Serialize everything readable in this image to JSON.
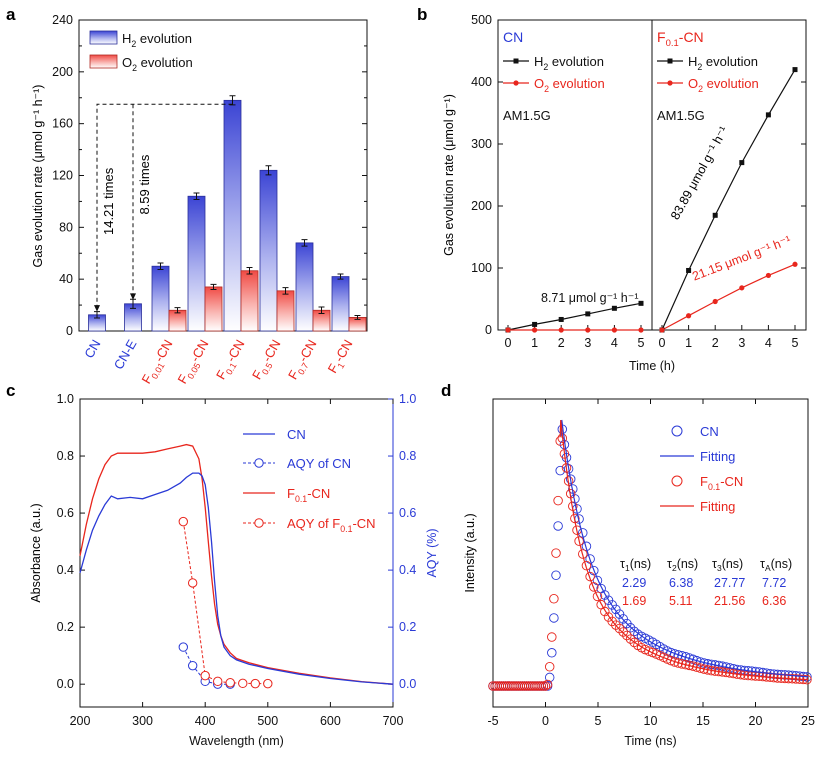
{
  "chart_data": [
    {
      "panel": "a",
      "type": "bar",
      "ylabel": "Gas evolution rate (μmol g⁻¹ h⁻¹)",
      "ylim": [
        0,
        240
      ],
      "yticks": [
        0,
        40,
        80,
        120,
        160,
        200,
        240
      ],
      "categories": [
        {
          "base": "CN",
          "sub": "",
          "suffix": "",
          "color": "#2a3ad6"
        },
        {
          "base": "CN-E",
          "sub": "",
          "suffix": "",
          "color": "#2a3ad6"
        },
        {
          "base": "F",
          "sub": "0.01",
          "suffix": "-CN",
          "color": "#e8261d"
        },
        {
          "base": "F",
          "sub": "0.05",
          "suffix": "-CN",
          "color": "#e8261d"
        },
        {
          "base": "F",
          "sub": "0.1",
          "suffix": "-CN",
          "color": "#e8261d"
        },
        {
          "base": "F",
          "sub": "0.5",
          "suffix": "-CN",
          "color": "#e8261d"
        },
        {
          "base": "F",
          "sub": "0.7",
          "suffix": "-CN",
          "color": "#e8261d"
        },
        {
          "base": "F",
          "sub": "1",
          "suffix": "-CN",
          "color": "#e8261d"
        }
      ],
      "series": [
        {
          "name": "H2 evolution",
          "values": [
            12.5,
            21,
            50,
            104,
            178,
            124,
            68,
            42
          ],
          "errors": [
            2.5,
            3.5,
            2.5,
            2.5,
            3.5,
            3.5,
            2.5,
            2
          ]
        },
        {
          "name": "O2 evolution",
          "values": [
            null,
            null,
            16,
            34,
            46.5,
            31,
            16,
            10.5
          ],
          "errors": [
            null,
            null,
            2,
            2,
            2.5,
            2.5,
            2.5,
            1.5
          ]
        }
      ],
      "legend": [
        {
          "base": "H",
          "sub": "2",
          "rest": " evolution"
        },
        {
          "base": "O",
          "sub": "2",
          "rest": " evolution"
        }
      ],
      "annotations": [
        "14.21 times",
        "8.59 times"
      ]
    },
    {
      "panel": "b",
      "type": "line",
      "xlabel": "Time (h)",
      "ylabel": "Gas evolution rate (μmol g⁻¹)",
      "ylim": [
        0,
        500
      ],
      "yticks": [
        0,
        100,
        200,
        300,
        400,
        500
      ],
      "xticks": [
        0,
        1,
        2,
        3,
        4,
        5
      ],
      "subpanels": [
        {
          "title": {
            "base": "CN",
            "sub": "",
            "suffix": ""
          },
          "title_color": "#2a3ad6",
          "light": "AM1.5G",
          "rate_label": "8.71 μmol g⁻¹ h⁻¹",
          "series": [
            {
              "name": "H2 evolution",
              "x": [
                0,
                1,
                2,
                3,
                4,
                5
              ],
              "y": [
                0,
                9,
                17,
                26,
                35,
                43
              ]
            },
            {
              "name": "O2 evolution",
              "x": [
                0,
                1,
                2,
                3,
                4,
                5
              ],
              "y": [
                0,
                0,
                0,
                0,
                0,
                0
              ]
            }
          ]
        },
        {
          "title": {
            "base": "F",
            "sub": "0.1",
            "suffix": "-CN"
          },
          "title_color": "#e8261d",
          "light": "AM1.5G",
          "rate_label": "83.89 μmol g⁻¹ h⁻¹",
          "rate_label_2": "21.15 μmol g⁻¹ h⁻¹",
          "series": [
            {
              "name": "H2 evolution",
              "x": [
                0,
                1,
                2,
                3,
                4,
                5
              ],
              "y": [
                0,
                96,
                185,
                270,
                347,
                420
              ]
            },
            {
              "name": "O2 evolution",
              "x": [
                0,
                1,
                2,
                3,
                4,
                5
              ],
              "y": [
                0,
                23,
                46,
                68,
                88,
                106
              ]
            }
          ]
        }
      ],
      "legend": [
        {
          "base": "H",
          "sub": "2",
          "rest": " evolution"
        },
        {
          "base": "O",
          "sub": "2",
          "rest": " evolution"
        }
      ]
    },
    {
      "panel": "c",
      "type": "line",
      "xlabel": "Wavelength (nm)",
      "ylabel": "Absorbance (a.u.)",
      "y2label": "AQY (%)",
      "xlim": [
        200,
        700
      ],
      "ylim": [
        -0.08,
        1.0
      ],
      "xticks": [
        200,
        300,
        400,
        500,
        600,
        700
      ],
      "yticks": [
        0.0,
        0.2,
        0.4,
        0.6,
        0.8,
        1.0
      ],
      "series": [
        {
          "name": "CN",
          "x": [
            200,
            210,
            220,
            230,
            240,
            250,
            260,
            280,
            300,
            320,
            340,
            360,
            370,
            380,
            390,
            395,
            400,
            405,
            410,
            415,
            420,
            425,
            430,
            440,
            450,
            470,
            500,
            550,
            600,
            650,
            700
          ],
          "y": [
            0.39,
            0.47,
            0.54,
            0.59,
            0.63,
            0.66,
            0.65,
            0.655,
            0.65,
            0.665,
            0.68,
            0.705,
            0.725,
            0.74,
            0.74,
            0.73,
            0.7,
            0.62,
            0.5,
            0.36,
            0.24,
            0.17,
            0.13,
            0.1,
            0.085,
            0.07,
            0.055,
            0.035,
            0.02,
            0.008,
            0.0
          ]
        },
        {
          "name": "F0.1-CN",
          "x": [
            200,
            210,
            220,
            230,
            240,
            250,
            260,
            280,
            300,
            320,
            340,
            360,
            370,
            380,
            390,
            395,
            400,
            405,
            410,
            415,
            420,
            425,
            430,
            440,
            450,
            470,
            500,
            550,
            600,
            650,
            700
          ],
          "y": [
            0.45,
            0.56,
            0.65,
            0.72,
            0.77,
            0.8,
            0.81,
            0.81,
            0.81,
            0.815,
            0.825,
            0.835,
            0.84,
            0.835,
            0.79,
            0.72,
            0.62,
            0.5,
            0.38,
            0.28,
            0.21,
            0.17,
            0.14,
            0.11,
            0.09,
            0.075,
            0.058,
            0.038,
            0.022,
            0.009,
            0.0
          ]
        },
        {
          "name": "AQY of CN",
          "x": [
            365,
            380,
            400,
            420,
            440
          ],
          "y": [
            0.13,
            0.065,
            0.01,
            0.0,
            0.0
          ]
        },
        {
          "name": "AQY of F0.1-CN",
          "x": [
            365,
            380,
            400,
            420,
            440,
            460,
            480,
            500
          ],
          "y": [
            0.57,
            0.355,
            0.03,
            0.01,
            0.005,
            0.003,
            0.002,
            0.002
          ]
        }
      ],
      "legend": [
        {
          "base": "CN",
          "sub": "",
          "rest": ""
        },
        {
          "base": "AQY of CN",
          "sub": "",
          "rest": ""
        },
        {
          "base": "F",
          "sub": "0.1",
          "rest": "-CN"
        },
        {
          "base": "AQY of F",
          "sub": "0.1",
          "rest": "-CN"
        }
      ]
    },
    {
      "panel": "d",
      "type": "scatter",
      "xlabel": "Time (ns)",
      "ylabel": "Intensity (a.u.)",
      "xlim": [
        -5,
        25
      ],
      "xticks": [
        -5,
        0,
        5,
        10,
        15,
        20,
        25
      ],
      "legend": [
        {
          "base": "CN",
          "sub": "",
          "rest": ""
        },
        {
          "base": "Fitting",
          "sub": "",
          "rest": ""
        },
        {
          "base": "F",
          "sub": "0.1",
          "rest": "-CN"
        },
        {
          "base": "Fitting",
          "sub": "",
          "rest": ""
        }
      ],
      "table": {
        "headers": [
          {
            "t": "τ",
            "s": "1",
            "u": "(ns)"
          },
          {
            "t": "τ",
            "s": "2",
            "u": "(ns)"
          },
          {
            "t": "τ",
            "s": "3",
            "u": "(ns)"
          },
          {
            "t": "τ",
            "s": "A",
            "u": "(ns)"
          }
        ],
        "rows": [
          {
            "name": "CN",
            "values": [
              "2.29",
              "6.38",
              "27.77",
              "7.72"
            ]
          },
          {
            "name": "F0.1-CN",
            "values": [
              "1.69",
              "5.11",
              "21.56",
              "6.36"
            ]
          }
        ]
      },
      "series": [
        {
          "name": "CN",
          "tau_avg": 7.72
        },
        {
          "name": "F0.1-CN",
          "tau_avg": 6.36
        }
      ]
    }
  ],
  "panel_labels": [
    "a",
    "b",
    "c",
    "d"
  ],
  "colors": {
    "blue": "#2a3ad6",
    "red": "#e8261d",
    "black": "#111111"
  }
}
